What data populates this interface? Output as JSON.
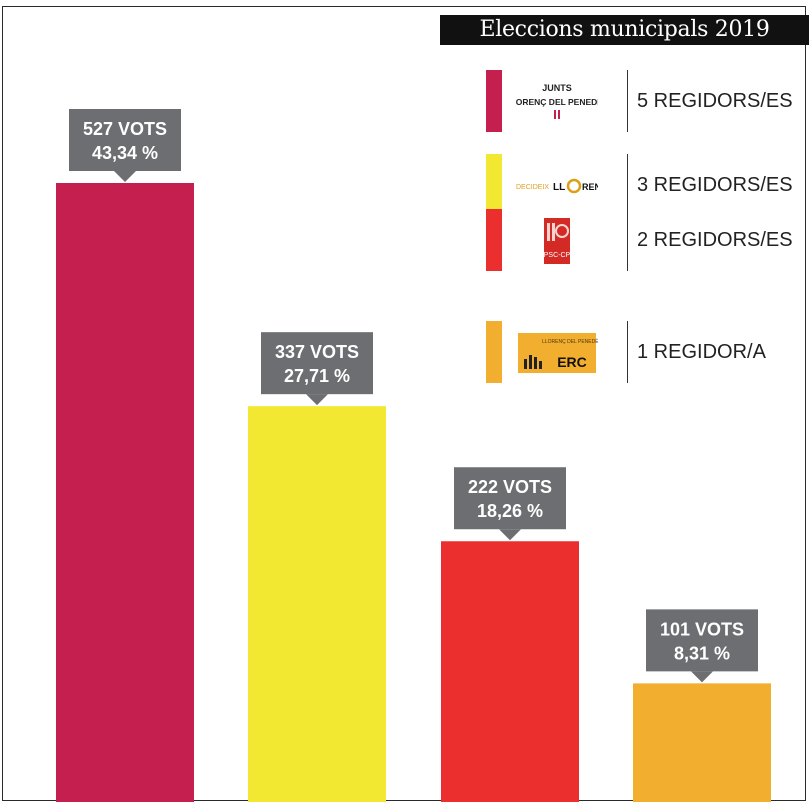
{
  "title": "Eleccions municipals 2019",
  "chart_data": {
    "type": "bar",
    "categories": [
      "JUNTS per LLORENÇ DEL PENEDÈS",
      "DECIDEIX LLORENÇ",
      "PSC-CP",
      "ERC LLORENÇ DEL PENEDÈS"
    ],
    "values": [
      527,
      337,
      222,
      101
    ],
    "percent_labels": [
      "43,34 %",
      "27,71 %",
      "18,26 %",
      "8,31 %"
    ],
    "vote_labels": [
      "527 VOTS",
      "337 VOTS",
      "222 VOTS",
      "101 VOTS"
    ],
    "colors": [
      "#c41f4f",
      "#f2e832",
      "#ea2f2e",
      "#f2ae2e"
    ],
    "label_box_color": "#6d6e71",
    "ylim": [
      0,
      560
    ],
    "grid": false,
    "legend_position": "top-right"
  },
  "legend": [
    {
      "seats": "5 REGIDORS/ES",
      "color": "#c41f4f",
      "logo_text_1": "JUNTS per",
      "logo_text_2": "LLORENÇ DEL PENEDÈS"
    },
    {
      "seats": "3 REGIDORS/ES",
      "color": "#f2e832",
      "logo_text_1": "DECIDEIX",
      "logo_text_2": "LLORENÇ"
    },
    {
      "seats": "2 REGIDORS/ES",
      "color": "#ea2f2e",
      "logo_text_1": "PSC-CP",
      "logo_text_2": ""
    },
    {
      "seats": "1 REGIDOR/A",
      "color": "#f2ae2e",
      "logo_text_1": "LLORENÇ DEL PENEDÈS",
      "logo_text_2": "ERC"
    }
  ]
}
